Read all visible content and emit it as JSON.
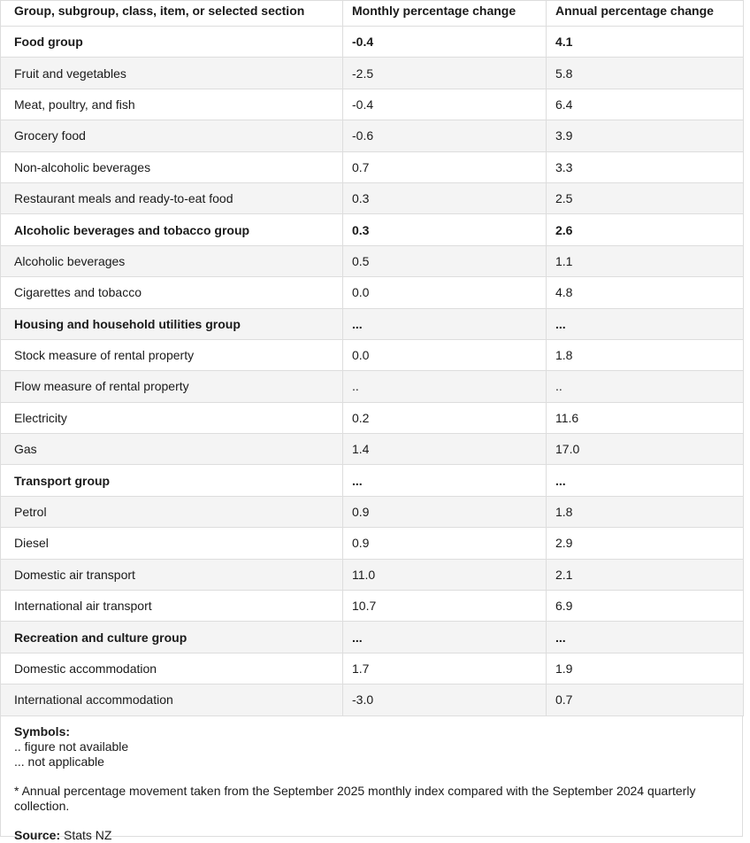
{
  "table": {
    "header": [
      "Group, subgroup, class, item, or selected section",
      "Monthly percentage change",
      "Annual percentage change"
    ],
    "groups": [
      {
        "cells": [
          "Food group",
          "-0.4",
          "4.1"
        ],
        "items": [
          [
            "Fruit and vegetables",
            "-2.5",
            "5.8"
          ],
          [
            "Meat, poultry, and fish",
            "-0.4",
            "6.4"
          ],
          [
            "Grocery food",
            "-0.6",
            "3.9"
          ],
          [
            "Non-alcoholic beverages",
            "0.7",
            "3.3"
          ],
          [
            "Restaurant meals and ready-to-eat food",
            "0.3",
            "2.5"
          ]
        ]
      },
      {
        "cells": [
          "Alcoholic beverages and tobacco group",
          "0.3",
          "2.6"
        ],
        "items": [
          [
            "Alcoholic beverages",
            "0.5",
            "1.1"
          ],
          [
            "Cigarettes and tobacco",
            "0.0",
            "4.8"
          ]
        ]
      },
      {
        "cells": [
          "Housing and household utilities group",
          "...",
          "..."
        ],
        "items": [
          [
            "Stock measure of rental property",
            "0.0",
            "1.8"
          ],
          [
            "Flow measure of rental property",
            "..",
            ".."
          ],
          [
            "Electricity",
            "0.2",
            "11.6"
          ],
          [
            "Gas",
            "1.4",
            "17.0"
          ]
        ]
      },
      {
        "cells": [
          "Transport group",
          "...",
          "..."
        ],
        "items": [
          [
            "Petrol",
            "0.9",
            "1.8"
          ],
          [
            "Diesel",
            "0.9",
            "2.9"
          ],
          [
            "Domestic air transport",
            "11.0",
            "2.1"
          ],
          [
            "International air transport",
            "10.7",
            "6.9"
          ]
        ]
      },
      {
        "cells": [
          "Recreation and culture group",
          "...",
          "..."
        ],
        "items": [
          [
            "Domestic accommodation",
            "1.7",
            "1.9"
          ],
          [
            "International accommodation",
            "-3.0",
            "0.7"
          ]
        ]
      }
    ]
  },
  "footer": {
    "symbols_title": "Symbols:",
    "symbols": [
      ".. figure not available",
      "... not applicable"
    ],
    "note": "* Annual percentage movement taken from the September 2025 monthly index compared with the September 2024 quarterly collection.",
    "source_label": "Source:",
    "source": "Stats NZ"
  }
}
